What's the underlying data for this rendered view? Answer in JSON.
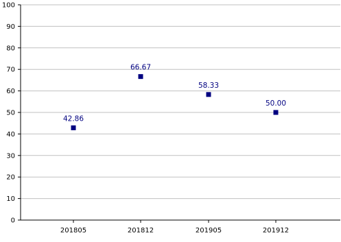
{
  "chart_data": {
    "type": "scatter",
    "title": "",
    "xlabel": "",
    "ylabel": "",
    "categories": [
      "201805",
      "201812",
      "201905",
      "201912"
    ],
    "series": [
      {
        "values": [
          42.86,
          66.67,
          58.33,
          50.0
        ],
        "labels": [
          "42.86",
          "66.67",
          "58.33",
          "50.00"
        ]
      }
    ],
    "ylim": [
      0,
      100
    ],
    "yticks": [
      "0",
      "10",
      "20",
      "30",
      "40",
      "50",
      "60",
      "70",
      "80",
      "90",
      "100"
    ],
    "grid": true,
    "legend": "none",
    "colors": {
      "marker": "#000080",
      "grid": "#c0c0c0",
      "axis": "#000000",
      "label": "#000080",
      "tick": "#000000"
    }
  }
}
